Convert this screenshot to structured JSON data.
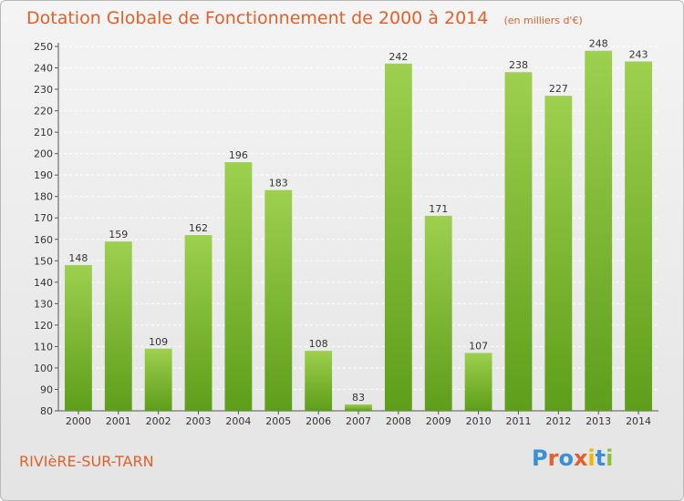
{
  "header": {
    "title": "Dotation Globale de Fonctionnement de 2000 à 2014",
    "subtitle": "(en milliers d'€)"
  },
  "footer": {
    "commune": "RIVIèRE-SUR-TARN",
    "logo_text": "Proxiti",
    "logo_colors": [
      "#3a8fd6",
      "#e0612a",
      "#3a8fd6",
      "#e0612a",
      "#f2b600",
      "#3a8fd6",
      "#88c23a"
    ]
  },
  "colors": {
    "bar_top": "#9dd04e",
    "bar_bottom": "#5e9e1a",
    "accent": "#e0612a",
    "grid": "#ffffff"
  },
  "chart_data": {
    "type": "bar",
    "categories": [
      "2000",
      "2001",
      "2002",
      "2003",
      "2004",
      "2005",
      "2006",
      "2007",
      "2008",
      "2009",
      "2010",
      "2011",
      "2012",
      "2013",
      "2014"
    ],
    "values": [
      148,
      159,
      109,
      162,
      196,
      183,
      108,
      83,
      242,
      171,
      107,
      238,
      227,
      248,
      243
    ],
    "ylim": [
      80,
      250
    ],
    "ytick_step": 10,
    "grid": true,
    "xlabel": "",
    "ylabel": ""
  }
}
